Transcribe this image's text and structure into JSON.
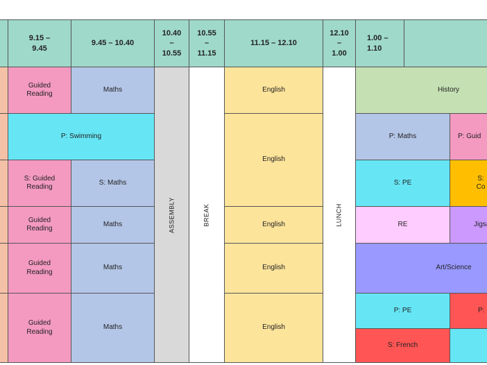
{
  "headers": {
    "t1": "9.15 –\n9.45",
    "t2": "9.45 – 10.40",
    "t3": "10.40\n–\n10.55",
    "t4": "10.55\n–\n11.15",
    "t5": "11.15 – 12.10",
    "t6": "12.10\n–\n1.00",
    "t7": "1.00 –\n1.10",
    "t8": ""
  },
  "cells": {
    "guided_reading": "Guided Reading",
    "maths": "Maths",
    "english": "English",
    "history": "History",
    "p_swimming": "P: Swimming",
    "p_maths": "P: Maths",
    "p_guided": "P: Guid",
    "s_guided_reading": "S: Guided Reading",
    "s_maths": "S: Maths",
    "s_pe": "S: PE",
    "s_co": "S: Co",
    "re": "RE",
    "jigsaw": "Jigsa",
    "art_science": "Art/Science",
    "p_pe": "P: PE",
    "p_clip": "P:",
    "s_french": "S: French"
  },
  "vertical": {
    "assembly": "ASSEMBLY",
    "break": "BREAK",
    "lunch": "LUNCH"
  },
  "colors": {
    "header": "#9fd9c9",
    "left_strip": "#f5c1a6",
    "guided_reading": "#f49ac1",
    "maths": "#b4c6e7",
    "english": "#fde49b",
    "history": "#c5e0b3",
    "swimming_pe": "#66e6f5",
    "computing": "#ffbf00",
    "re": "#ffccff",
    "jigsaw": "#cc99ff",
    "art_science": "#9999ff",
    "red": "#ff5555",
    "assembly": "#d9d9d9",
    "break_lunch": "#ffffff"
  }
}
